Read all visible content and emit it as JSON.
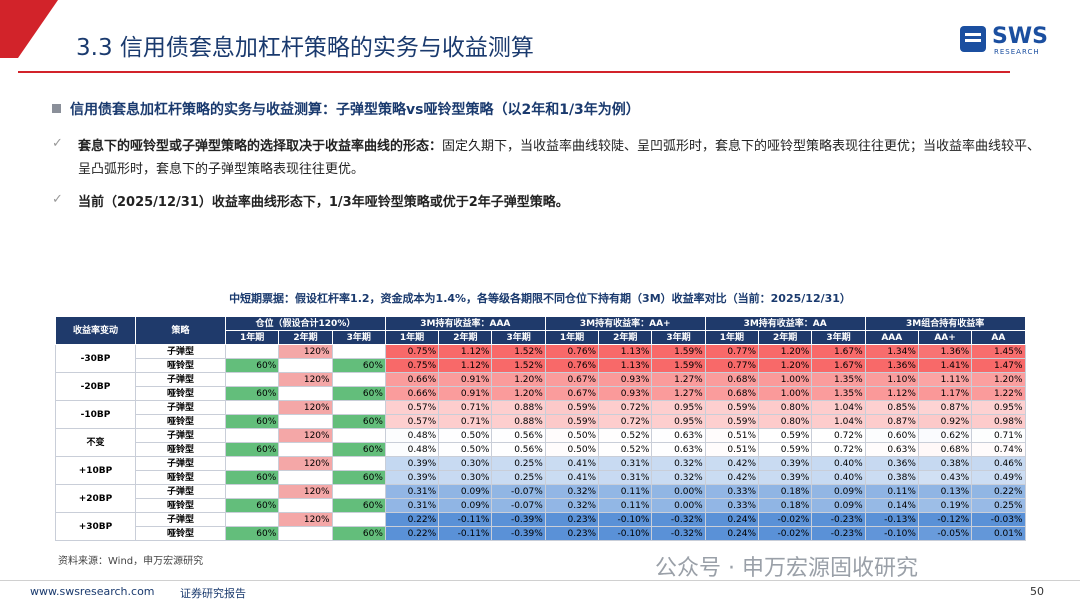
{
  "header": {
    "title": "3.3 信用债套息加杠杆策略的实务与收益测算",
    "logo": "SWS",
    "logo_sub": "RESEARCH"
  },
  "heading": "信用债套息加杠杆策略的实务与收益测算：子弹型策略vs哑铃型策略（以2年和1/3年为例）",
  "bullets": [
    {
      "bold": "套息下的哑铃型或子弹型策略的选择取决于收益率曲线的形态：",
      "text": "固定久期下，当收益率曲线较陡、呈凹弧形时，套息下的哑铃型策略表现往往更优；当收益率曲线较平、呈凸弧形时，套息下的子弹型策略表现往往更优。"
    },
    {
      "bold": "当前（2025/12/31）收益率曲线形态下，1/3年哑铃型策略或优于2年子弹型策略。"
    }
  ],
  "table": {
    "title": "中短期票据：假设杠杆率1.2，资金成本为1.4%，各等级各期限不同仓位下持有期（3M）收益率对比（当前：2025/12/31）",
    "header_top": [
      "收益率变动",
      "策略",
      "仓位（假设合计120%）",
      "3M持有收益率：AAA",
      "3M持有收益率：AA+",
      "3M持有收益率：AA",
      "3M组合持有收益率"
    ],
    "header_sub": [
      "1年期",
      "2年期",
      "3年期",
      "1年期",
      "2年期",
      "3年期",
      "1年期",
      "2年期",
      "3年期",
      "1年期",
      "2年期",
      "3年期",
      "AAA",
      "AA+",
      "AA"
    ],
    "groups": [
      {
        "label": "-30BP",
        "rows": [
          [
            "子弹型",
            null,
            "120%",
            null,
            "0.75%",
            "1.12%",
            "1.52%",
            "0.76%",
            "1.13%",
            "1.59%",
            "0.77%",
            "1.20%",
            "1.67%",
            "1.34%",
            "1.36%",
            "1.45%"
          ],
          [
            "哑铃型",
            "60%",
            null,
            "60%",
            "0.75%",
            "1.12%",
            "1.52%",
            "0.76%",
            "1.13%",
            "1.59%",
            "0.77%",
            "1.20%",
            "1.67%",
            "1.36%",
            "1.41%",
            "1.47%"
          ]
        ]
      },
      {
        "label": "-20BP",
        "rows": [
          [
            "子弹型",
            null,
            "120%",
            null,
            "0.66%",
            "0.91%",
            "1.20%",
            "0.67%",
            "0.93%",
            "1.27%",
            "0.68%",
            "1.00%",
            "1.35%",
            "1.10%",
            "1.11%",
            "1.20%"
          ],
          [
            "哑铃型",
            "60%",
            null,
            "60%",
            "0.66%",
            "0.91%",
            "1.20%",
            "0.67%",
            "0.93%",
            "1.27%",
            "0.68%",
            "1.00%",
            "1.35%",
            "1.12%",
            "1.17%",
            "1.22%"
          ]
        ]
      },
      {
        "label": "-10BP",
        "rows": [
          [
            "子弹型",
            null,
            "120%",
            null,
            "0.57%",
            "0.71%",
            "0.88%",
            "0.59%",
            "0.72%",
            "0.95%",
            "0.59%",
            "0.80%",
            "1.04%",
            "0.85%",
            "0.87%",
            "0.95%"
          ],
          [
            "哑铃型",
            "60%",
            null,
            "60%",
            "0.57%",
            "0.71%",
            "0.88%",
            "0.59%",
            "0.72%",
            "0.95%",
            "0.59%",
            "0.80%",
            "1.04%",
            "0.87%",
            "0.92%",
            "0.98%"
          ]
        ]
      },
      {
        "label": "不变",
        "rows": [
          [
            "子弹型",
            null,
            "120%",
            null,
            "0.48%",
            "0.50%",
            "0.56%",
            "0.50%",
            "0.52%",
            "0.63%",
            "0.51%",
            "0.59%",
            "0.72%",
            "0.60%",
            "0.62%",
            "0.71%"
          ],
          [
            "哑铃型",
            "60%",
            null,
            "60%",
            "0.48%",
            "0.50%",
            "0.56%",
            "0.50%",
            "0.52%",
            "0.63%",
            "0.51%",
            "0.59%",
            "0.72%",
            "0.63%",
            "0.68%",
            "0.74%"
          ]
        ]
      },
      {
        "label": "+10BP",
        "rows": [
          [
            "子弹型",
            null,
            "120%",
            null,
            "0.39%",
            "0.30%",
            "0.25%",
            "0.41%",
            "0.31%",
            "0.32%",
            "0.42%",
            "0.39%",
            "0.40%",
            "0.36%",
            "0.38%",
            "0.46%"
          ],
          [
            "哑铃型",
            "60%",
            null,
            "60%",
            "0.39%",
            "0.30%",
            "0.25%",
            "0.41%",
            "0.31%",
            "0.32%",
            "0.42%",
            "0.39%",
            "0.40%",
            "0.38%",
            "0.43%",
            "0.49%"
          ]
        ]
      },
      {
        "label": "+20BP",
        "rows": [
          [
            "子弹型",
            null,
            "120%",
            null,
            "0.31%",
            "0.09%",
            "-0.07%",
            "0.32%",
            "0.11%",
            "0.00%",
            "0.33%",
            "0.18%",
            "0.09%",
            "0.11%",
            "0.13%",
            "0.22%"
          ],
          [
            "哑铃型",
            "60%",
            null,
            "60%",
            "0.31%",
            "0.09%",
            "-0.07%",
            "0.32%",
            "0.11%",
            "0.00%",
            "0.33%",
            "0.18%",
            "0.09%",
            "0.14%",
            "0.19%",
            "0.25%"
          ]
        ]
      },
      {
        "label": "+30BP",
        "rows": [
          [
            "子弹型",
            null,
            "120%",
            null,
            "0.22%",
            "-0.11%",
            "-0.39%",
            "0.23%",
            "-0.10%",
            "-0.32%",
            "0.24%",
            "-0.02%",
            "-0.23%",
            "-0.13%",
            "-0.12%",
            "-0.03%"
          ],
          [
            "哑铃型",
            "60%",
            null,
            "60%",
            "0.22%",
            "-0.11%",
            "-0.39%",
            "0.23%",
            "-0.10%",
            "-0.32%",
            "0.24%",
            "-0.02%",
            "-0.23%",
            "-0.10%",
            "-0.05%",
            "0.01%"
          ]
        ]
      }
    ],
    "source": "资料来源：Wind，申万宏源研究"
  },
  "watermark": "公众号 · 申万宏源固收研究",
  "footer": {
    "site": "www.swsresearch.com",
    "label": "证券研究报告",
    "page": "50"
  }
}
